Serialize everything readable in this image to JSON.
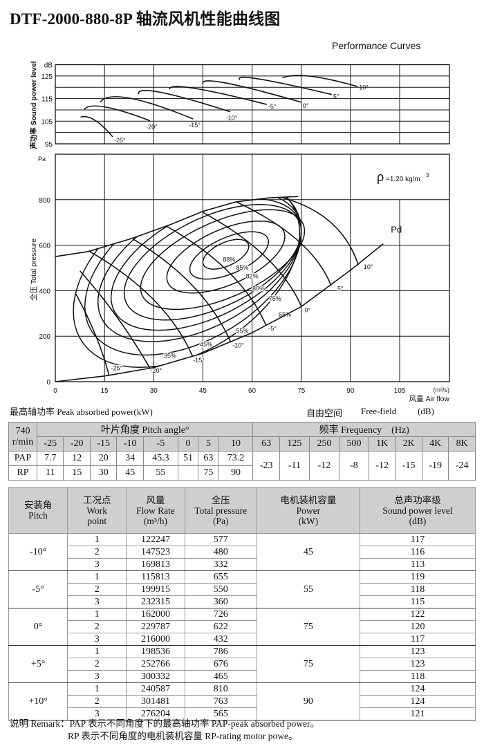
{
  "title": "DTF-2000-880-8P 轴流风机性能曲线图",
  "subtitle": "Performance Curves",
  "chart_data": [
    {
      "type": "line",
      "ylabel": "声功率 Sound power level",
      "yunit": "dB",
      "ylim": [
        95,
        130
      ],
      "yticks": [
        "95",
        "105",
        "115",
        "125"
      ],
      "xlim": [
        0,
        120
      ],
      "grid": true,
      "series": [
        {
          "name": "-25°",
          "points": [
            [
              7.7,
              106.8
            ],
            [
              12,
              105.5
            ],
            [
              17.5,
              98.1
            ]
          ]
        },
        {
          "name": "-20°",
          "points": [
            [
              8.8,
              110.2
            ],
            [
              15.1,
              111.3
            ],
            [
              28.9,
              105.2
            ]
          ]
        },
        {
          "name": "-15°",
          "points": [
            [
              13.7,
              113.4
            ],
            [
              22.6,
              115.2
            ],
            [
              42,
              106
            ]
          ]
        },
        {
          "name": "-10°",
          "points": [
            [
              25.4,
              117
            ],
            [
              32,
              117.8
            ],
            [
              53.3,
              109.2
            ]
          ]
        },
        {
          "name": "-5°",
          "points": [
            [
              34.8,
              119.1
            ],
            [
              42.2,
              119.6
            ],
            [
              64.5,
              112.4
            ]
          ]
        },
        {
          "name": "0°",
          "points": [
            [
              45,
              121.6
            ],
            [
              52,
              121.9
            ],
            [
              75,
              113.4
            ]
          ]
        },
        {
          "name": "5°",
          "points": [
            [
              56.3,
              123.4
            ],
            [
              62,
              123.7
            ],
            [
              84.3,
              116.8
            ]
          ]
        },
        {
          "name": "10°",
          "points": [
            [
              69.3,
              124.2
            ],
            [
              77.8,
              124.9
            ],
            [
              92.2,
              120.3
            ]
          ]
        }
      ]
    },
    {
      "type": "line",
      "ylabel": "全压 Total pressure",
      "yunit": "Pa",
      "xlabel": "风量 Air flow",
      "xunit": "(m³/s)",
      "xlim": [
        0,
        120
      ],
      "ylim": [
        0,
        1000
      ],
      "xticks": [
        "0",
        "15",
        "30",
        "45",
        "60",
        "75",
        "90",
        "105"
      ],
      "yticks": [
        "0",
        "200",
        "400",
        "600",
        "800"
      ],
      "grid": true,
      "annotation": {
        "rho": "ρ",
        "density": "=1.20 kg/m",
        "sup": "3"
      },
      "envelope": [
        [
          0,
          550
        ],
        [
          10,
          572
        ],
        [
          23,
          628
        ],
        [
          35,
          690
        ],
        [
          45,
          749
        ],
        [
          55,
          790
        ],
        [
          65,
          808
        ],
        [
          74,
          814
        ]
      ],
      "pitch_curves": [
        {
          "name": "-25°",
          "points": [
            [
              6.2,
              387
            ],
            [
              12.4,
              200
            ],
            [
              16.4,
              25
            ]
          ],
          "label_at": [
            17,
            50
          ]
        },
        {
          "name": "-20°",
          "points": [
            [
              7.5,
              487
            ],
            [
              19,
              280
            ],
            [
              28.8,
              60
            ]
          ],
          "label_at": [
            29,
            40
          ]
        },
        {
          "name": "-15°",
          "points": [
            [
              10.4,
              573
            ],
            [
              30,
              360
            ],
            [
              41.9,
              110
            ]
          ],
          "label_at": [
            42,
            85
          ]
        },
        {
          "name": "-10°",
          "points": [
            [
              23.6,
              628
            ],
            [
              42,
              420
            ],
            [
              53.5,
              173
            ]
          ],
          "label_at": [
            54,
            150
          ]
        },
        {
          "name": "-5°",
          "points": [
            [
              34,
              683
            ],
            [
              53,
              480
            ],
            [
              64.2,
              249
            ]
          ],
          "label_at": [
            65,
            225
          ]
        },
        {
          "name": "0°",
          "points": [
            [
              44.8,
              746
            ],
            [
              64,
              550
            ],
            [
              75,
              332
            ]
          ],
          "label_at": [
            76,
            305
          ]
        },
        {
          "name": "5°",
          "points": [
            [
              55.1,
              791
            ],
            [
              74,
              620
            ],
            [
              84.1,
              422
            ]
          ],
          "label_at": [
            86,
            400
          ]
        },
        {
          "name": "10°",
          "points": [
            [
              69.2,
              809
            ],
            [
              84,
              700
            ],
            [
              92.4,
              513
            ]
          ],
          "label_at": [
            94,
            495
          ]
        }
      ],
      "pd_curve": {
        "name": "Pd",
        "points": [
          [
            0,
            0
          ],
          [
            15,
            25
          ],
          [
            30,
            62
          ],
          [
            45,
            125
          ],
          [
            60,
            215
          ],
          [
            75,
            330
          ],
          [
            90,
            490
          ],
          [
            100,
            606
          ]
        ],
        "label_at": [
          104,
          655
        ]
      },
      "efficiency_contours": [
        {
          "name": "35%",
          "center": [
            40,
            482
          ],
          "semi_axes": [
            34.5,
            382
          ],
          "label_at": [
            35,
            105
          ]
        },
        {
          "name": "45%",
          "center": [
            42,
            495
          ],
          "semi_axes": [
            33,
            340
          ],
          "label_at": [
            46,
            155
          ]
        },
        {
          "name": "55%",
          "center": [
            44,
            505
          ],
          "semi_axes": [
            31,
            290
          ],
          "label_at": [
            57,
            215
          ]
        },
        {
          "name": "65%",
          "center": [
            46,
            515
          ],
          "semi_axes": [
            29,
            250
          ],
          "label_at": [
            70,
            285
          ]
        },
        {
          "name": "75%",
          "center": [
            48,
            525
          ],
          "semi_axes": [
            27,
            215
          ],
          "label_at": [
            67,
            355
          ]
        },
        {
          "name": "80%",
          "center": [
            51,
            537
          ],
          "semi_axes": [
            25,
            180
          ],
          "label_at": [
            62,
            400
          ]
        },
        {
          "name": "82%",
          "center": [
            52,
            548
          ],
          "semi_axes": [
            18,
            130
          ],
          "label_at": [
            60,
            455
          ]
        },
        {
          "name": "85%",
          "center": [
            53,
            555
          ],
          "semi_axes": [
            12,
            85
          ],
          "label_at": [
            57,
            492
          ]
        },
        {
          "name": "88%",
          "center": [
            52,
            560
          ],
          "semi_axes": [
            7,
            55
          ],
          "label_at": [
            53,
            528
          ]
        }
      ],
      "contour_tilt_pa_per_m3s": 5
    }
  ],
  "pap_section": {
    "title": "最高轴功率 Peak absorbed power(kW)",
    "free_field": "自由空间",
    "free_field_en": "Free-field",
    "unit": "(dB)",
    "speed": "740",
    "speed_unit": "r/min",
    "pitch_header": "叶片角度 Pitch angle°",
    "freq_header": "频率 Frequency",
    "freq_unit": "(Hz)",
    "angles": [
      "-25",
      "-20",
      "-15",
      "-10",
      "-5",
      "0",
      "5",
      "10"
    ],
    "freqs": [
      "63",
      "125",
      "250",
      "500",
      "1K",
      "2K",
      "4K",
      "8K"
    ],
    "pap_label": "PAP",
    "rp_label": "RP",
    "pap": [
      "7.7",
      "12",
      "20",
      "34",
      "45.3",
      "51",
      "63",
      "73.2"
    ],
    "rp": [
      "11",
      "15",
      "30",
      "45",
      "55",
      "",
      "75",
      "90"
    ],
    "freq_values": [
      "-23",
      "-11",
      "-12",
      "-8",
      "-12",
      "-15",
      "-19",
      "-24"
    ]
  },
  "work_table": {
    "headers": [
      [
        "安装角",
        "Pitch"
      ],
      [
        "工况点",
        "Work",
        "point"
      ],
      [
        "风量",
        "Flow Rate",
        "(m³/h)"
      ],
      [
        "全压",
        "Total pressure",
        "(Pa)"
      ],
      [
        "电机装机容量",
        "Power",
        "(kW)"
      ],
      [
        "总声功率级",
        "Sound power level",
        "(dB)"
      ]
    ],
    "groups": [
      {
        "pitch": "-10°",
        "power": "45",
        "rows": [
          [
            "1",
            "122247",
            "577",
            "117"
          ],
          [
            "2",
            "147523",
            "480",
            "116"
          ],
          [
            "3",
            "169813",
            "332",
            "113"
          ]
        ]
      },
      {
        "pitch": "-5°",
        "power": "55",
        "rows": [
          [
            "1",
            "115813",
            "655",
            "119"
          ],
          [
            "2",
            "199915",
            "550",
            "118"
          ],
          [
            "3",
            "232315",
            "360",
            "115"
          ]
        ]
      },
      {
        "pitch": "0°",
        "power": "75",
        "rows": [
          [
            "1",
            "162000",
            "726",
            "122"
          ],
          [
            "2",
            "229787",
            "622",
            "120"
          ],
          [
            "3",
            "216000",
            "432",
            "117"
          ]
        ]
      },
      {
        "pitch": "+5°",
        "power": "75",
        "rows": [
          [
            "1",
            "198536",
            "786",
            "123"
          ],
          [
            "2",
            "252766",
            "676",
            "123"
          ],
          [
            "3",
            "300332",
            "465",
            "118"
          ]
        ]
      },
      {
        "pitch": "+10°",
        "power": "90",
        "rows": [
          [
            "1",
            "240587",
            "810",
            "124"
          ],
          [
            "2",
            "301481",
            "763",
            "124"
          ],
          [
            "3",
            "276204",
            "565",
            "121"
          ]
        ]
      }
    ]
  },
  "remark": {
    "line1": "说明 Remark：PAP 表示不同角度下的最高轴功率 PAP-peak absorbed power。",
    "line2": "RP 表示不同角度的电机装机容量 RP-rating motor powe。"
  }
}
